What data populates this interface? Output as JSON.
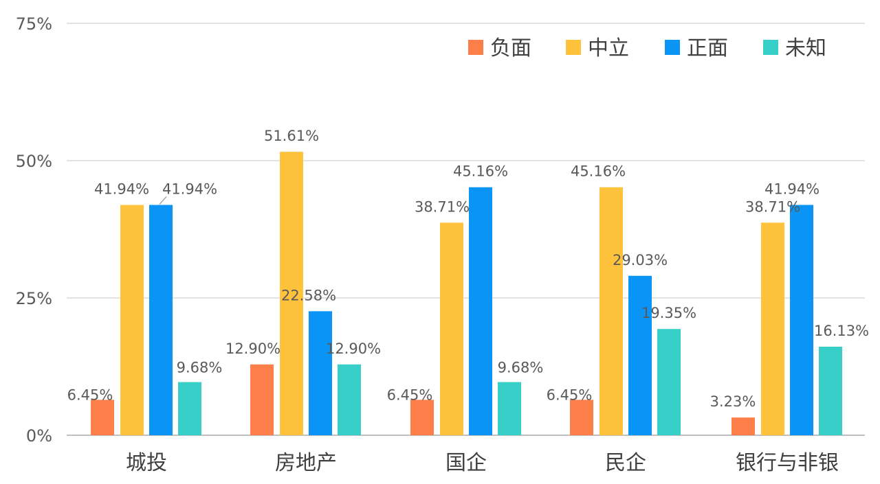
{
  "chart_data": {
    "type": "bar",
    "categories": [
      "城投",
      "房地产",
      "国企",
      "民企",
      "银行与非银"
    ],
    "series": [
      {
        "name": "负面",
        "color": "#FF7F4A",
        "values": [
          6.45,
          12.9,
          6.45,
          6.45,
          3.23
        ],
        "labels": [
          "6.45%",
          "12.90%",
          "6.45%",
          "6.45%",
          "3.23%"
        ]
      },
      {
        "name": "中立",
        "color": "#FFC23C",
        "values": [
          41.94,
          51.61,
          38.71,
          45.16,
          38.71
        ],
        "labels": [
          "41.94%",
          "51.61%",
          "38.71%",
          "45.16%",
          "38.71%"
        ]
      },
      {
        "name": "正面",
        "color": "#0A94F5",
        "values": [
          41.94,
          22.58,
          45.16,
          29.03,
          41.94
        ],
        "labels": [
          "41.94%",
          "22.58%",
          "45.16%",
          "29.03%",
          "41.94%"
        ]
      },
      {
        "name": "未知",
        "color": "#37CFC8",
        "values": [
          9.68,
          12.9,
          9.68,
          19.35,
          16.13
        ],
        "labels": [
          "9.68%",
          "12.90%",
          "9.68%",
          "19.35%",
          "16.13%"
        ]
      }
    ],
    "yticks": [
      {
        "value": 0,
        "label": "0%"
      },
      {
        "value": 25,
        "label": "25%"
      },
      {
        "value": 50,
        "label": "50%"
      },
      {
        "value": 75,
        "label": "75%"
      }
    ],
    "ylim": [
      0,
      75
    ],
    "grid": true,
    "legend_position": "top-right",
    "gridline_color": "#D9D9D9",
    "axis_line_color": "#BFBFBF"
  }
}
